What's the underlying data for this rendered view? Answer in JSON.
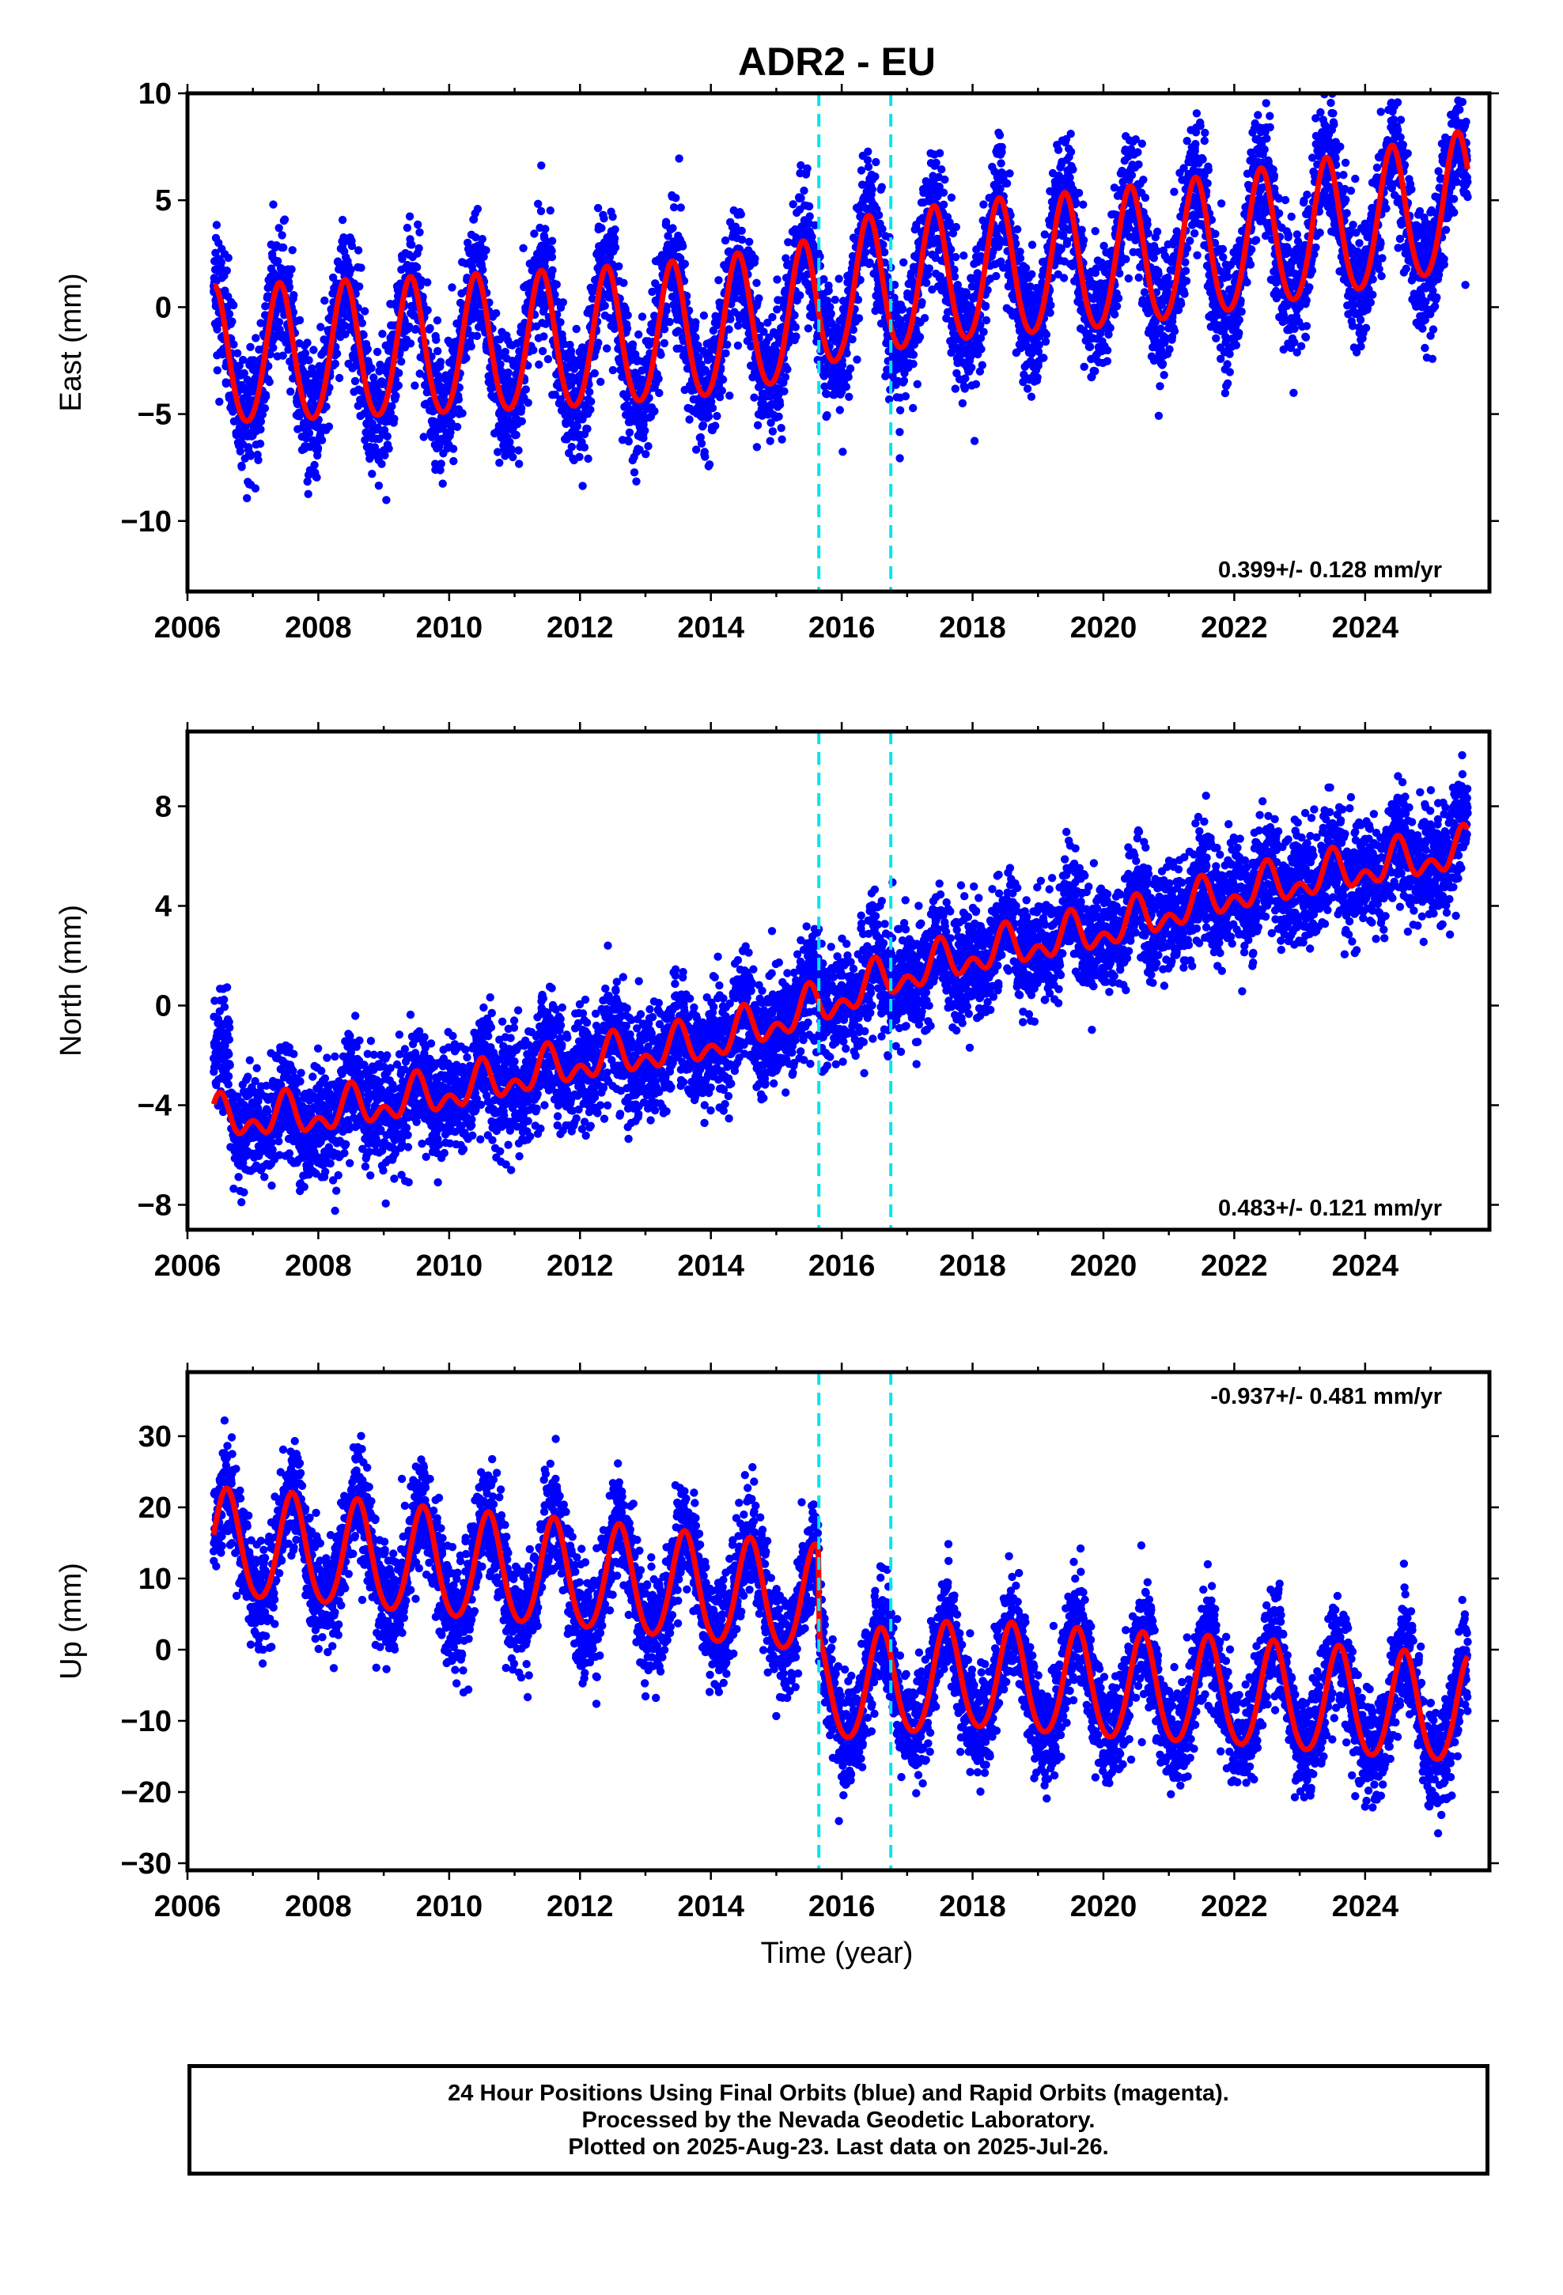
{
  "title": "ADR2 - EU",
  "xlabel": "Time (year)",
  "footer": {
    "line1": "24 Hour Positions Using Final Orbits (blue) and Rapid Orbits (magenta).",
    "line2": "Processed by the Nevada Geodetic Laboratory.",
    "line3": "Plotted on 2025-Aug-23. Last data on 2025-Jul-26."
  },
  "colors": {
    "points_final": "#0000ff",
    "model": "#ff0000",
    "events": "#00e5ee"
  },
  "chart_data": [
    {
      "type": "scatter",
      "ylabel": "East (mm)",
      "rate_text": "0.399+/- 0.128 mm/yr",
      "xlim": [
        2006,
        2025.9
      ],
      "ylim": [
        -13.3,
        10.0
      ],
      "xticks": [
        2006,
        2008,
        2010,
        2012,
        2014,
        2016,
        2018,
        2020,
        2022,
        2024
      ],
      "yticks": [
        10,
        5,
        0,
        -5,
        -10
      ],
      "event_lines_x": [
        2015.65,
        2016.75
      ],
      "data_range_x": [
        2006.4,
        2025.57
      ],
      "model": {
        "anchors": [
          [
            2006.4,
            -2.5
          ],
          [
            2010.0,
            -2.0
          ],
          [
            2012.0,
            -1.7
          ],
          [
            2014.0,
            -1.2
          ],
          [
            2015.6,
            -0.3
          ],
          [
            2016.0,
            0.6
          ],
          [
            2018.0,
            1.5
          ],
          [
            2020.0,
            2.0
          ],
          [
            2022.0,
            2.8
          ],
          [
            2024.0,
            3.8
          ],
          [
            2025.57,
            4.8
          ]
        ],
        "annual_amplitude_mm": 3.2,
        "annual_peak_fraction": 0.41,
        "semiannual_amplitude_mm": 0.3
      },
      "scatter_sigma_mm": 1.5
    },
    {
      "type": "scatter",
      "ylabel": "North (mm)",
      "rate_text": "0.483+/- 0.121 mm/yr",
      "xlim": [
        2006,
        2025.9
      ],
      "ylim": [
        -9.0,
        11.0
      ],
      "xticks": [
        2006,
        2008,
        2010,
        2012,
        2014,
        2016,
        2018,
        2020,
        2022,
        2024
      ],
      "yticks": [
        8,
        4,
        0,
        -4,
        -8
      ],
      "event_lines_x": [
        2015.65,
        2016.75
      ],
      "data_range_x": [
        2006.4,
        2025.57
      ],
      "model": {
        "anchors": [
          [
            2006.4,
            -4.6
          ],
          [
            2008.0,
            -4.4
          ],
          [
            2010.0,
            -3.5
          ],
          [
            2012.0,
            -2.3
          ],
          [
            2014.0,
            -1.5
          ],
          [
            2015.6,
            -0.1
          ],
          [
            2016.75,
            1.1
          ],
          [
            2018.0,
            2.0
          ],
          [
            2020.0,
            3.0
          ],
          [
            2022.0,
            4.5
          ],
          [
            2024.0,
            5.5
          ],
          [
            2025.57,
            6.2
          ]
        ],
        "annual_amplitude_mm": 0.6,
        "annual_peak_fraction": 0.5,
        "semiannual_amplitude_mm": 0.5
      },
      "scatter_sigma_mm": 1.1,
      "early_offset": {
        "until": 2006.65,
        "value_mm": 2.5
      }
    },
    {
      "type": "scatter",
      "ylabel": "Up (mm)",
      "rate_text": "-0.937+/- 0.481 mm/yr",
      "xlim": [
        2006,
        2025.9
      ],
      "ylim": [
        -31.0,
        39.0
      ],
      "xticks": [
        2006,
        2008,
        2010,
        2012,
        2014,
        2016,
        2018,
        2020,
        2022,
        2024
      ],
      "yticks": [
        30,
        20,
        10,
        0,
        -10,
        -20,
        -30
      ],
      "event_lines_x": [
        2015.65,
        2016.75
      ],
      "data_range_x": [
        2006.4,
        2025.57
      ],
      "model": {
        "anchors": [
          [
            2006.4,
            14.5
          ],
          [
            2008.0,
            13.5
          ],
          [
            2010.0,
            11.5
          ],
          [
            2012.0,
            10.0
          ],
          [
            2014.0,
            8.0
          ],
          [
            2015.64,
            6.5
          ],
          [
            2015.66,
            -6.0
          ],
          [
            2018.0,
            -4.0
          ],
          [
            2020.0,
            -5.5
          ],
          [
            2022.0,
            -6.5
          ],
          [
            2024.0,
            -8.0
          ],
          [
            2025.57,
            -9.0
          ]
        ],
        "annual_amplitude_mm": 7.5,
        "annual_peak_fraction": 0.6,
        "semiannual_amplitude_mm": 0.8
      },
      "scatter_sigma_mm": 3.8
    }
  ]
}
